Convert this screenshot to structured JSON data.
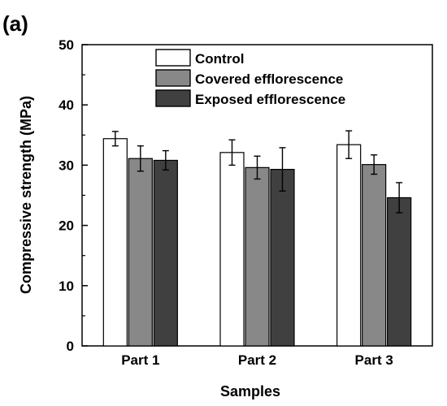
{
  "panel_label": "(a)",
  "chart_data": {
    "type": "bar",
    "title": "",
    "xlabel": "Samples",
    "ylabel": "Compressive strength (MPa)",
    "ylim": [
      0,
      50
    ],
    "yticks": [
      0,
      10,
      20,
      30,
      40,
      50
    ],
    "categories": [
      "Part 1",
      "Part 2",
      "Part 3"
    ],
    "series": [
      {
        "name": "Control",
        "values": [
          34.4,
          32.1,
          33.4
        ],
        "errors": [
          1.2,
          2.1,
          2.3
        ],
        "color": "#ffffff"
      },
      {
        "name": "Covered efflorescence",
        "values": [
          31.1,
          29.6,
          30.1
        ],
        "errors": [
          2.1,
          1.9,
          1.6
        ],
        "color": "#888888"
      },
      {
        "name": "Exposed efflorescence",
        "values": [
          30.8,
          29.3,
          24.6
        ],
        "errors": [
          1.6,
          3.6,
          2.5
        ],
        "color": "#404040"
      }
    ],
    "legend_position": "top-center",
    "grid": false
  }
}
